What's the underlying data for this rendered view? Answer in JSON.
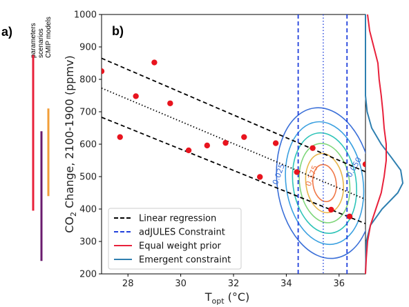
{
  "panel_a": {
    "label": "a)",
    "column_labels": [
      "parameters",
      "scenarios",
      "CMIP models"
    ],
    "bars": [
      {
        "name": "parameters",
        "color": "#e8203a",
        "y_top": 875,
        "y_bottom": 395
      },
      {
        "name": "scenarios",
        "color": "#6a1b6e",
        "y_top": 640,
        "y_bottom": 240
      },
      {
        "name": "CMIP models",
        "color": "#f29e38",
        "y_top": 710,
        "y_bottom": 440
      }
    ]
  },
  "chart_data": {
    "type": "scatter",
    "panel_label": "b)",
    "xlabel": "T",
    "xlabel_sub": "opt",
    "xlabel_unit": " (°C)",
    "ylabel_pre": "CO",
    "ylabel_sub": "2",
    "ylabel_post": " Change, 2100-1900 (ppmv)",
    "xlim": [
      27,
      37
    ],
    "ylim": [
      200,
      1000
    ],
    "xticks": [
      "28",
      "30",
      "32",
      "34",
      "36"
    ],
    "yticks": [
      "200",
      "300",
      "400",
      "500",
      "600",
      "700",
      "800",
      "900",
      "1000"
    ],
    "points": [
      {
        "x": 27.0,
        "y": 825
      },
      {
        "x": 27.7,
        "y": 622
      },
      {
        "x": 28.3,
        "y": 748
      },
      {
        "x": 29.0,
        "y": 852
      },
      {
        "x": 29.6,
        "y": 726
      },
      {
        "x": 30.3,
        "y": 581
      },
      {
        "x": 31.0,
        "y": 596
      },
      {
        "x": 31.7,
        "y": 604
      },
      {
        "x": 32.4,
        "y": 622
      },
      {
        "x": 33.0,
        "y": 499
      },
      {
        "x": 33.6,
        "y": 603
      },
      {
        "x": 34.4,
        "y": 514
      },
      {
        "x": 35.0,
        "y": 588
      },
      {
        "x": 35.7,
        "y": 398
      },
      {
        "x": 36.4,
        "y": 377
      },
      {
        "x": 37.0,
        "y": 538
      }
    ],
    "regression": {
      "center": [
        [
          27,
          773
        ],
        [
          37,
          430
        ]
      ],
      "upper": [
        [
          27,
          865
        ],
        [
          37,
          515
        ]
      ],
      "lower": [
        [
          27,
          683
        ],
        [
          37,
          355
        ]
      ]
    },
    "constraint": {
      "center": 35.4,
      "lower": 34.45,
      "upper": 36.3
    },
    "emergent": {
      "cx": 35.45,
      "cy": 480,
      "sx": 0.63,
      "sy": 82
    },
    "contours": [
      {
        "level": "0.025",
        "k": 2.85,
        "color": "#3a6fd8"
      },
      {
        "level": "0.050",
        "k": 2.32,
        "color": "#3aa0e0"
      },
      {
        "level": "0.075",
        "k": 1.9,
        "color": "#2ec4b8"
      },
      {
        "level": "0.100",
        "k": 1.5,
        "color": "#7fd67a"
      },
      {
        "level": "0.125",
        "k": 1.12,
        "color": "#e8b54a"
      },
      {
        "level": "0.175",
        "k": 0.7,
        "color": "#f07848"
      }
    ],
    "contour_labels": [
      {
        "text": "0.025",
        "x": 33.8,
        "y": 505,
        "angle": -70,
        "color": "#3a6fd8"
      },
      {
        "text": "0.050",
        "x": 36.65,
        "y": 525,
        "angle": -60,
        "color": "#3a6fd8"
      },
      {
        "text": "0.175",
        "x": 35.05,
        "y": 500,
        "angle": -70,
        "color": "#f07848"
      }
    ],
    "marginal": {
      "prior": [
        [
          200,
          0
        ],
        [
          250,
          0.02
        ],
        [
          300,
          0.05
        ],
        [
          350,
          0.12
        ],
        [
          400,
          0.25
        ],
        [
          450,
          0.38
        ],
        [
          500,
          0.45
        ],
        [
          550,
          0.5
        ],
        [
          600,
          0.5
        ],
        [
          650,
          0.45
        ],
        [
          700,
          0.42
        ],
        [
          750,
          0.38
        ],
        [
          800,
          0.33
        ],
        [
          850,
          0.3
        ],
        [
          900,
          0.2
        ],
        [
          950,
          0.1
        ],
        [
          1000,
          0.05
        ]
      ],
      "emergent": [
        [
          200,
          0
        ],
        [
          300,
          0.02
        ],
        [
          350,
          0.12
        ],
        [
          400,
          0.4
        ],
        [
          450,
          0.78
        ],
        [
          480,
          0.9
        ],
        [
          520,
          0.85
        ],
        [
          560,
          0.62
        ],
        [
          600,
          0.38
        ],
        [
          650,
          0.15
        ],
        [
          700,
          0.04
        ],
        [
          750,
          0
        ],
        [
          1000,
          0
        ]
      ]
    },
    "legend": {
      "position": "lower-left",
      "entries": [
        {
          "label": "Linear regression",
          "color": "#000000",
          "style": "dashed"
        },
        {
          "label": "adJULES Constraint",
          "color": "#1f3fdc",
          "style": "dashed"
        },
        {
          "label": "Equal weight prior",
          "color": "#e8203a",
          "style": "solid"
        },
        {
          "label": "Emergent constraint",
          "color": "#2e7fb0",
          "style": "solid"
        }
      ]
    },
    "colors": {
      "points": "#e8141e",
      "regression": "#000000",
      "constraint": "#1f3fdc",
      "prior": "#e8203a",
      "emergent": "#2e7fb0"
    }
  }
}
